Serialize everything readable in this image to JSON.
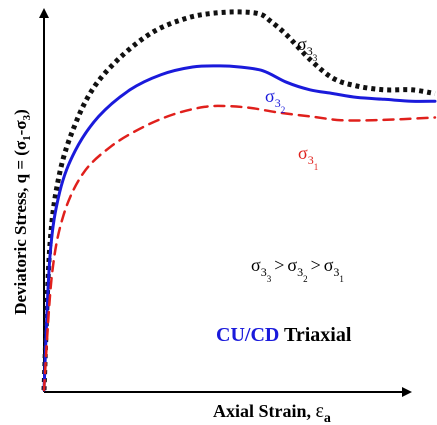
{
  "chart_data": {
    "type": "line",
    "title": "",
    "xlabel": {
      "main": "Axial Strain, ",
      "symbol": "ε",
      "subscript": "a"
    },
    "ylabel": {
      "main": "Deviatoric Stress, q = (σ",
      "sub1": "1",
      "dash": "-σ",
      "sub3": "3",
      "close": ")"
    },
    "x_ticks": "none",
    "y_ticks": "none",
    "x_range": [
      0,
      1
    ],
    "y_range": [
      0,
      1
    ],
    "grid": false,
    "legend": "inline labels",
    "series": [
      {
        "name": "σ33",
        "label": {
          "sigma": "σ",
          "sub1": "3",
          "sub2": "3"
        },
        "style": "dotted",
        "color": "#111111",
        "points": [
          [
            0.0,
            0.0
          ],
          [
            0.015,
            0.38
          ],
          [
            0.04,
            0.57
          ],
          [
            0.08,
            0.7
          ],
          [
            0.13,
            0.8
          ],
          [
            0.2,
            0.88
          ],
          [
            0.28,
            0.943
          ],
          [
            0.36,
            0.977
          ],
          [
            0.42,
            0.99
          ],
          [
            0.49,
            0.995
          ],
          [
            0.55,
            0.99
          ],
          [
            0.58,
            0.97
          ],
          [
            0.62,
            0.935
          ],
          [
            0.68,
            0.87
          ],
          [
            0.74,
            0.82
          ],
          [
            0.8,
            0.8
          ],
          [
            0.87,
            0.79
          ],
          [
            0.94,
            0.79
          ],
          [
            1.0,
            0.78
          ]
        ]
      },
      {
        "name": "σ32",
        "label": {
          "sigma": "σ",
          "sub1": "3",
          "sub2": "2"
        },
        "style": "solid",
        "color": "#1a1adb",
        "points": [
          [
            0.0,
            0.0
          ],
          [
            0.015,
            0.35
          ],
          [
            0.04,
            0.52
          ],
          [
            0.08,
            0.63
          ],
          [
            0.14,
            0.72
          ],
          [
            0.22,
            0.79
          ],
          [
            0.3,
            0.83
          ],
          [
            0.38,
            0.85
          ],
          [
            0.45,
            0.853
          ],
          [
            0.5,
            0.85
          ],
          [
            0.56,
            0.84
          ],
          [
            0.62,
            0.81
          ],
          [
            0.68,
            0.79
          ],
          [
            0.74,
            0.78
          ],
          [
            0.8,
            0.77
          ],
          [
            0.87,
            0.765
          ],
          [
            0.94,
            0.76
          ],
          [
            1.0,
            0.76
          ]
        ]
      },
      {
        "name": "σ31",
        "label": {
          "sigma": "σ",
          "sub1": "3",
          "sub2": "1"
        },
        "style": "dashed",
        "color": "#e0201c",
        "points": [
          [
            0.0,
            0.0
          ],
          [
            0.02,
            0.3
          ],
          [
            0.05,
            0.46
          ],
          [
            0.1,
            0.57
          ],
          [
            0.17,
            0.64
          ],
          [
            0.25,
            0.69
          ],
          [
            0.33,
            0.725
          ],
          [
            0.41,
            0.745
          ],
          [
            0.47,
            0.747
          ],
          [
            0.53,
            0.742
          ],
          [
            0.6,
            0.73
          ],
          [
            0.68,
            0.72
          ],
          [
            0.76,
            0.71
          ],
          [
            0.84,
            0.71
          ],
          [
            0.92,
            0.713
          ],
          [
            1.0,
            0.717
          ]
        ]
      }
    ],
    "annotations": {
      "inequality": {
        "sigma": "σ",
        "a_sub1": "3",
        "a_sub2": "3",
        "gt": ">",
        "b_sub1": "3",
        "b_sub2": "2",
        "c_sub1": "3",
        "c_sub2": "1"
      },
      "test_type": {
        "highlight": "CU/CD",
        "highlight_color": "#1a1adb",
        "rest": " Triaxial"
      }
    }
  }
}
